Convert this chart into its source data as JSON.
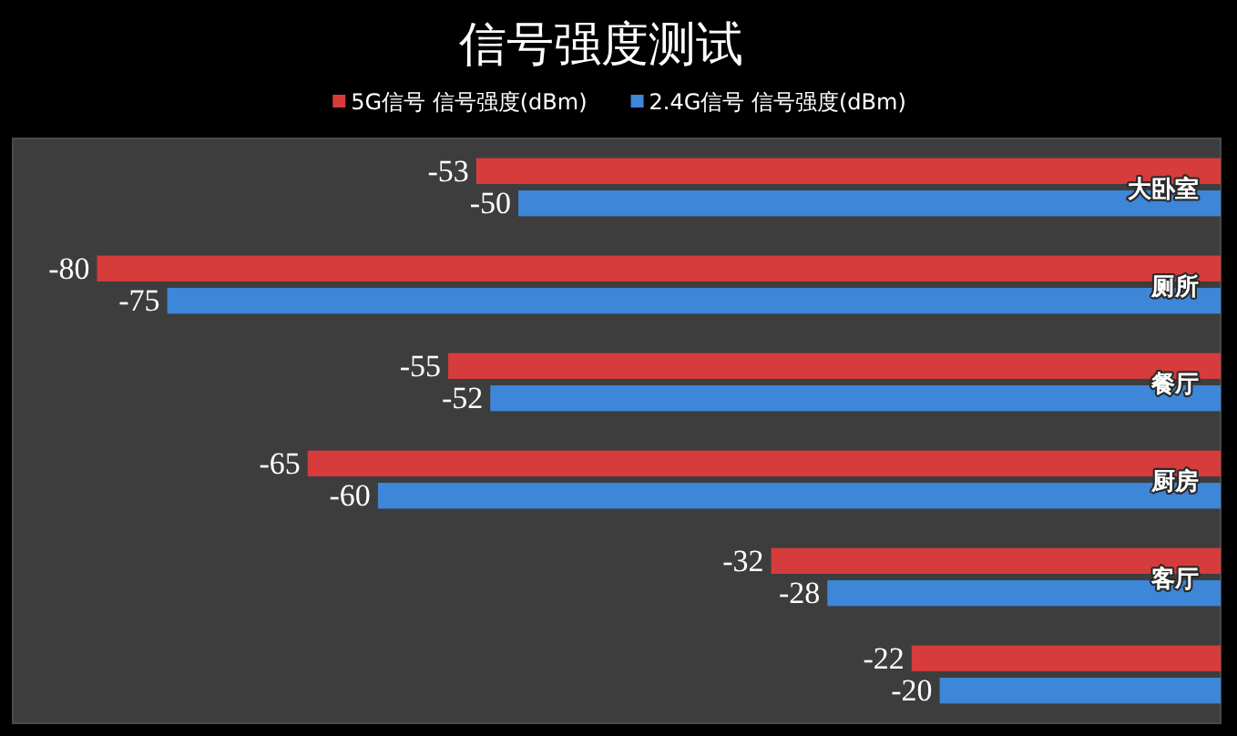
{
  "chart_data": {
    "type": "bar",
    "orientation": "horizontal",
    "title": "信号强度测试",
    "categories": [
      "大卧室",
      "厕所",
      "餐厅",
      "厨房",
      "客厅",
      null
    ],
    "series": [
      {
        "name": "5G信号 信号强度(dBm)",
        "color": "#d63c3c",
        "values": [
          -53,
          -80,
          -55,
          -65,
          -32,
          -22
        ]
      },
      {
        "name": "2.4G信号 信号强度(dBm)",
        "color": "#3d86d8",
        "values": [
          -50,
          -75,
          -52,
          -60,
          -28,
          -20
        ]
      }
    ],
    "xlim": [
      -86,
      0
    ],
    "data_labels": true,
    "legend": "top",
    "tick_labels": "y"
  }
}
